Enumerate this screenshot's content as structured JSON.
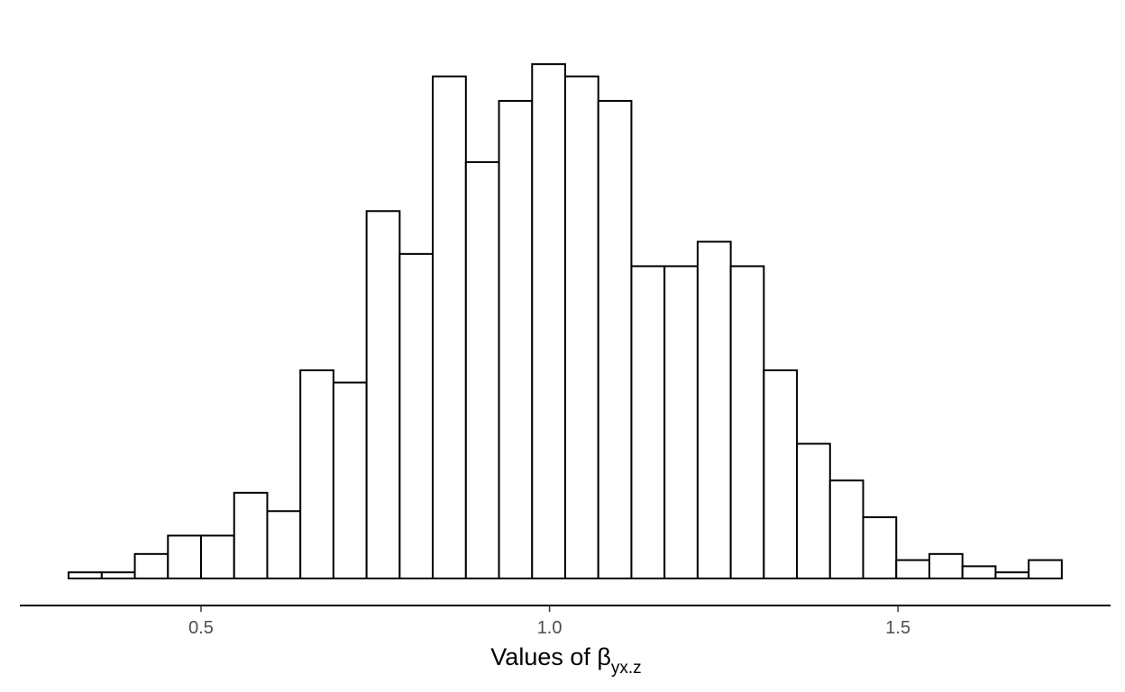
{
  "chart_data": {
    "type": "bar",
    "subtype": "histogram",
    "title": "",
    "xlabel": {
      "prefix": "Values of ",
      "symbol": "β",
      "subscript": "yx.z"
    },
    "ylabel": "",
    "xlim": [
      0.24,
      1.805
    ],
    "ylim": [
      0,
      44
    ],
    "x_ticks": [
      {
        "value": 0.5,
        "label": "0.5"
      },
      {
        "value": 1.0,
        "label": "1.0"
      },
      {
        "value": 1.5,
        "label": "1.5"
      }
    ],
    "bin_start": 0.31,
    "bin_width": 0.0475,
    "counts": [
      0.5,
      0.5,
      2,
      3.5,
      3.5,
      7,
      5.5,
      17,
      16,
      30,
      26.5,
      41,
      34,
      39,
      42,
      41,
      39,
      25.5,
      25.5,
      27.5,
      25.5,
      17,
      11,
      8,
      5,
      1.5,
      2,
      1,
      0.5,
      1.5
    ],
    "grid": false,
    "legend": "none",
    "bar_fill": "#ffffff",
    "bar_stroke": "#000000"
  }
}
